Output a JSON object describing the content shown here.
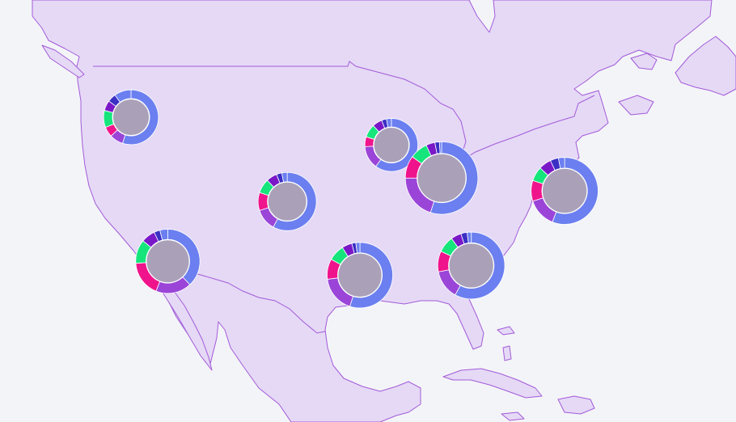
{
  "map": {
    "region": "North America",
    "colors": {
      "land": "#e5d9f6",
      "border": "#a35ad8",
      "water": "#f3f4f8",
      "core": "#aaa1b9"
    },
    "legend_visible": false
  },
  "series_colors": [
    "#6b7ff0",
    "#9a45d8",
    "#f0148c",
    "#16e57c",
    "#7a18c8",
    "#3b2fc4"
  ],
  "markers": [
    {
      "id": "seattle",
      "lon": -122.3,
      "lat": 47.6,
      "total": 20,
      "values": [
        55,
        8,
        6,
        10,
        6,
        5,
        10
      ]
    },
    {
      "id": "minneapolis",
      "lon": -93.3,
      "lat": 45.0,
      "total": 18,
      "values": [
        60,
        14,
        6,
        8,
        6,
        3,
        3
      ]
    },
    {
      "id": "los-angeles",
      "lon": -118.2,
      "lat": 34.1,
      "total": 32,
      "values": [
        38,
        18,
        18,
        12,
        7,
        3,
        4
      ]
    },
    {
      "id": "denver",
      "lon": -104.9,
      "lat": 39.7,
      "total": 24,
      "values": [
        58,
        12,
        10,
        8,
        6,
        3,
        3
      ]
    },
    {
      "id": "chicago",
      "lon": -87.7,
      "lat": 41.9,
      "total": 45,
      "values": [
        55,
        20,
        10,
        8,
        4,
        2,
        1
      ]
    },
    {
      "id": "new-york",
      "lon": -74.0,
      "lat": 40.7,
      "total": 36,
      "values": [
        56,
        14,
        10,
        7,
        6,
        4,
        3
      ]
    },
    {
      "id": "dallas",
      "lon": -96.8,
      "lat": 32.8,
      "total": 34,
      "values": [
        55,
        18,
        10,
        8,
        5,
        2,
        2
      ]
    },
    {
      "id": "atlanta",
      "lon": -84.4,
      "lat": 33.7,
      "total": 36,
      "values": [
        58,
        14,
        10,
        8,
        5,
        3,
        2
      ]
    }
  ]
}
